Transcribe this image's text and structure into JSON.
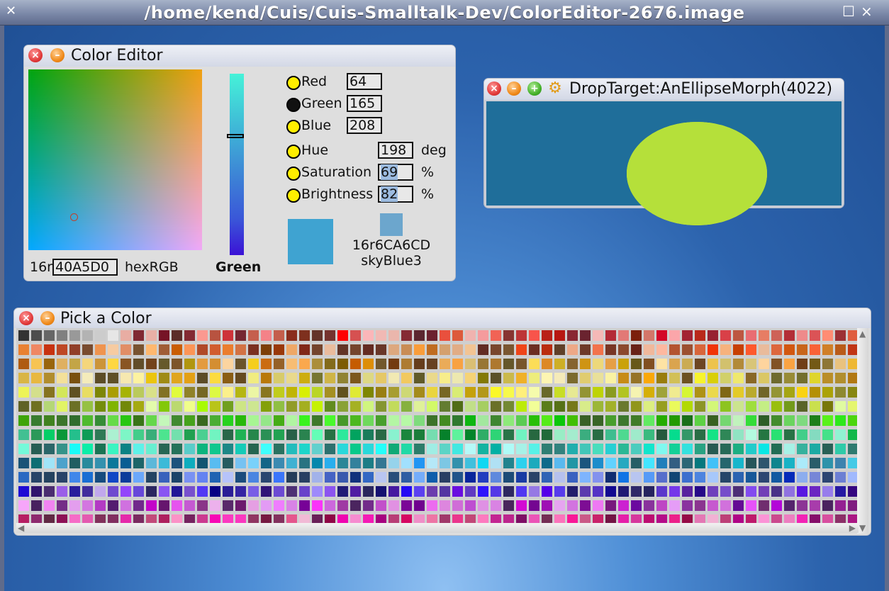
{
  "os_window": {
    "title": "/home/kend/Cuis/Cuis-Smalltalk-Dev/ColorEditor-2676.image",
    "close_glyph": "✕",
    "max_glyph": "☐",
    "min_glyph": "×"
  },
  "color_editor": {
    "title": "Color Editor",
    "hex_prefix": "16r",
    "hex_value": "40A5D0",
    "hex_label": "hexRGB",
    "slider_label": "Green",
    "rgb": [
      {
        "label": "Red",
        "value": "64",
        "selected": false
      },
      {
        "label": "Green",
        "value": "165",
        "selected": true
      },
      {
        "label": "Blue",
        "value": "208",
        "selected": false
      }
    ],
    "hsb": [
      {
        "label": "Hue",
        "value": "198",
        "unit": "deg"
      },
      {
        "label": "Saturation",
        "value": "69",
        "unit": "%"
      },
      {
        "label": "Brightness",
        "value": "82",
        "unit": "%"
      }
    ],
    "current_swatch_color": "#3fa3d1",
    "named_swatch_color": "#6ca6cd",
    "named_color_hex": "16r6CA6CD",
    "named_color_name": "skyBlue3"
  },
  "drop_target": {
    "title": "DropTarget:AnEllipseMorph(4022)",
    "background_color": "#1f6e9a",
    "ellipse_color": "#b5e03a",
    "ellipse_overflow_color": "#ffff10"
  },
  "pick_a_color": {
    "title": "Pick a Color"
  }
}
